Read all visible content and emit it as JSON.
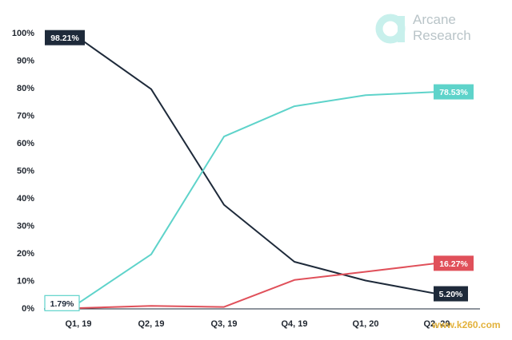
{
  "logo": {
    "line1": "Arcane",
    "line2": "Research",
    "mark_color": "#c8f0ec",
    "text_color": "#b9c4c8"
  },
  "watermark": "www.k260.com",
  "chart_data": {
    "type": "line",
    "title": "",
    "xlabel": "",
    "ylabel": "",
    "categories": [
      "Q1, 19",
      "Q2, 19",
      "Q3, 19",
      "Q4, 19",
      "Q1, 20",
      "Q2, 20"
    ],
    "y_ticks": [
      "0%",
      "10%",
      "20%",
      "30%",
      "40%",
      "50%",
      "60%",
      "70%",
      "80%",
      "90%",
      "100%"
    ],
    "ylim": [
      0,
      100
    ],
    "grid": false,
    "legend": "none",
    "series": [
      {
        "color": "#1e2a3a",
        "values": [
          98.21,
          79.5,
          37.5,
          16.8,
          10.0,
          5.2
        ],
        "labels": [
          {
            "index": 0,
            "text": "98.21%",
            "style": "filled"
          },
          {
            "index": 5,
            "text": "5.20%",
            "style": "filled"
          }
        ]
      },
      {
        "color": "#5ed3ca",
        "values": [
          1.79,
          19.5,
          62.3,
          73.3,
          77.3,
          78.53
        ],
        "labels": [
          {
            "index": 0,
            "text": "1.79%",
            "style": "outline"
          },
          {
            "index": 5,
            "text": "78.53%",
            "style": "filled"
          }
        ]
      },
      {
        "color": "#e0505a",
        "values": [
          0.0,
          0.8,
          0.4,
          10.2,
          13.2,
          16.27
        ],
        "labels": [
          {
            "index": 5,
            "text": "16.27%",
            "style": "filled"
          }
        ]
      }
    ]
  }
}
